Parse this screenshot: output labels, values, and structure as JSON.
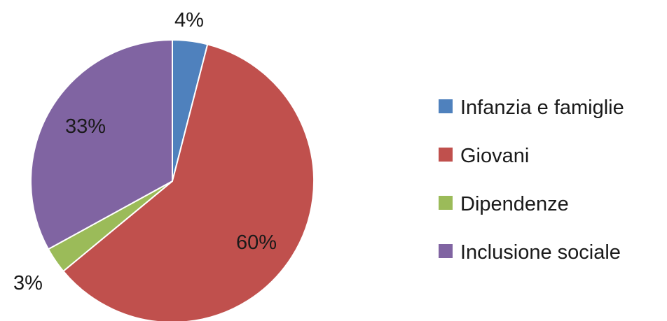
{
  "chart_data": {
    "type": "pie",
    "title": "",
    "legend_position": "right",
    "categories": [
      "Infanzia e famiglie",
      "Giovani",
      "Dipendenze",
      "Inclusione sociale"
    ],
    "values": [
      4,
      60,
      3,
      33
    ],
    "data_labels": [
      "4%",
      "60%",
      "3%",
      "33%"
    ],
    "colors": [
      "#4f81bd",
      "#c0504d",
      "#9bbb59",
      "#8064a2"
    ]
  }
}
